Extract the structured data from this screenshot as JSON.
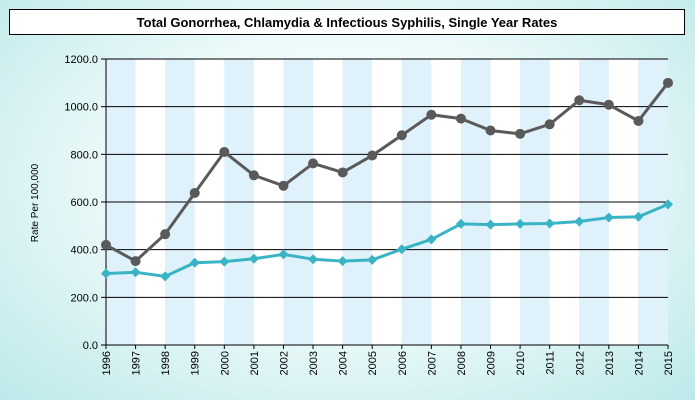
{
  "chart_data": {
    "type": "line",
    "title": "Total Gonorrhea, Chlamydia & Infectious Syphilis, Single Year Rates",
    "xlabel": "",
    "ylabel": "Rate Per 100,000",
    "ylim": [
      0,
      1200
    ],
    "y_ticks": [
      "0.0",
      "200.0",
      "400.0",
      "600.0",
      "800.0",
      "1000.0",
      "1200.0"
    ],
    "categories": [
      "1996",
      "1997",
      "1998",
      "1999",
      "2000",
      "2001",
      "2002",
      "2003",
      "2004",
      "2005",
      "2006",
      "2007",
      "2008",
      "2009",
      "2010",
      "2011",
      "2012",
      "2013",
      "2014",
      "2015"
    ],
    "grid": "horizontal",
    "legend": "none",
    "series": [
      {
        "color": "#5a5a5a",
        "marker": "circle",
        "values": [
          420,
          352,
          465,
          638,
          810,
          712,
          668,
          762,
          724,
          795,
          880,
          966,
          950,
          900,
          886,
          926,
          1027,
          1008,
          940,
          1100
        ]
      },
      {
        "color": "#3ab4c4",
        "marker": "diamond",
        "values": [
          300,
          305,
          288,
          345,
          350,
          362,
          380,
          360,
          352,
          357,
          402,
          443,
          508,
          505,
          508,
          510,
          518,
          535,
          538,
          590
        ]
      }
    ]
  }
}
